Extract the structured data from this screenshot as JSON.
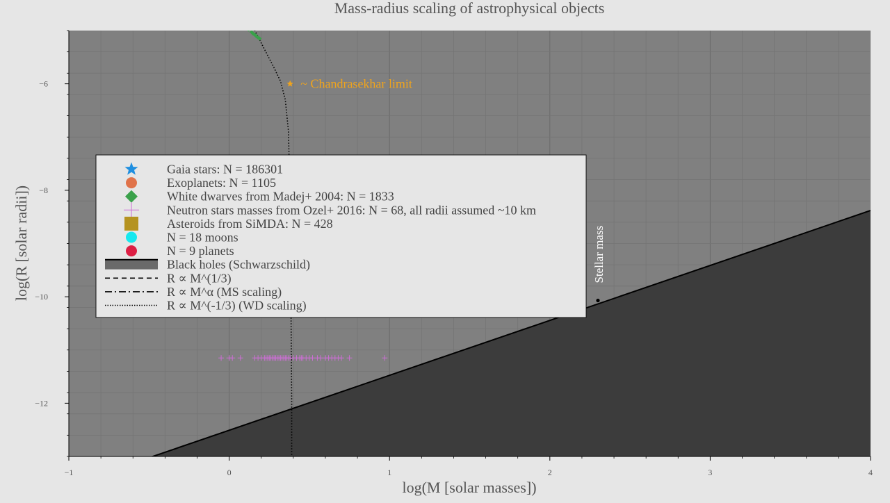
{
  "chart_data": {
    "type": "scatter",
    "title": "Mass-radius scaling of astrophysical objects",
    "xlabel": "log(M [solar masses])",
    "ylabel": "log(R [solar radii])",
    "xlim": [
      -1,
      4
    ],
    "ylim": [
      -13,
      -5
    ],
    "x_ticks": [
      {
        "value": -1,
        "label": "−1"
      },
      {
        "value": 0,
        "label": "0"
      },
      {
        "value": 1,
        "label": "1"
      },
      {
        "value": 2,
        "label": "2"
      },
      {
        "value": 3,
        "label": "3"
      },
      {
        "value": 4,
        "label": "4"
      }
    ],
    "y_ticks": [
      {
        "value": -6,
        "label": "−6"
      },
      {
        "value": -8,
        "label": "−8"
      },
      {
        "value": -10,
        "label": "−10"
      },
      {
        "value": -12,
        "label": "−12"
      }
    ],
    "grid": true,
    "legend_position": "upper-left",
    "legend": [
      {
        "label": "Gaia stars: N = 186301",
        "marker": "star",
        "color": "#1f8fe0"
      },
      {
        "label": "Exoplanets: N = 1105",
        "marker": "circle",
        "color": "#e0734a"
      },
      {
        "label": "White dwarves from Madej+ 2004: N = 1833",
        "marker": "diamond",
        "color": "#3aa14a"
      },
      {
        "label": "Neutron stars masses from Ozel+ 2016: N = 68, all radii assumed ~10 km",
        "marker": "plus",
        "color": "#cc6fd4"
      },
      {
        "label": "Asteroids from SiMDA: N = 428",
        "marker": "square",
        "color": "#b59320"
      },
      {
        "label": "N = 18 moons",
        "marker": "circle",
        "color": "#17e8ee"
      },
      {
        "label": "N = 9 planets",
        "marker": "circle",
        "color": "#dd1f44"
      },
      {
        "label": "Black holes (Schwarzschild)",
        "marker": "patch",
        "color": "#6a6a6a"
      },
      {
        "label": "R ∝ M^(1/3)",
        "marker": "dashed",
        "color": "#000000"
      },
      {
        "label": "R ∝ M^α (MS scaling)",
        "marker": "dashdot",
        "color": "#000000"
      },
      {
        "label": "R ∝ M^(-1/3) (WD scaling)",
        "marker": "dotted",
        "color": "#000000"
      }
    ],
    "series": [
      {
        "name": "Black holes (Schwarzschild)",
        "type": "line",
        "color": "#000000",
        "fill_below": "#3c3c3c",
        "x": [
          -1,
          4
        ],
        "y": [
          -13.54,
          -8.38
        ]
      },
      {
        "name": "R ∝ M^(-1/3) (WD scaling)",
        "type": "line",
        "style": "dotted",
        "color": "#000000",
        "x": [
          0.1,
          0.16,
          0.22,
          0.28,
          0.32,
          0.35,
          0.37,
          0.375,
          0.38,
          0.385,
          0.39,
          0.39
        ],
        "y": [
          -4.5,
          -5.0,
          -5.35,
          -5.7,
          -5.95,
          -6.3,
          -6.9,
          -7.6,
          -8.5,
          -10.0,
          -12.0,
          -13.0
        ]
      },
      {
        "name": "White dwarves from Madej+ 2004: N = 1833",
        "type": "scatter",
        "color": "#3aa14a",
        "x": [
          0.12,
          0.14,
          0.15,
          0.16,
          0.17,
          0.18,
          0.19
        ],
        "y": [
          -4.98,
          -5.03,
          -5.06,
          -5.08,
          -5.11,
          -5.13,
          -5.15
        ]
      },
      {
        "name": "Neutron stars masses from Ozel+ 2016: N = 68, all radii assumed ~10 km",
        "type": "scatter",
        "color": "#cc6fd4",
        "y_value": -11.15,
        "x": [
          -0.05,
          0.0,
          0.02,
          0.07,
          0.16,
          0.18,
          0.2,
          0.22,
          0.23,
          0.24,
          0.25,
          0.26,
          0.27,
          0.28,
          0.29,
          0.3,
          0.31,
          0.32,
          0.33,
          0.34,
          0.35,
          0.36,
          0.37,
          0.38,
          0.4,
          0.42,
          0.44,
          0.45,
          0.46,
          0.48,
          0.5,
          0.52,
          0.55,
          0.57,
          0.6,
          0.62,
          0.64,
          0.66,
          0.68,
          0.7,
          0.75,
          0.97
        ]
      }
    ],
    "annotations": [
      {
        "text": "~ Chandrasekhar limit",
        "x": 0.38,
        "y": -6.0,
        "color": "#f0a41c",
        "marker": "star"
      },
      {
        "text": "Stellar mass",
        "x": 2.3,
        "y": -10.07,
        "rotation": -90,
        "color": "#ffffff"
      }
    ]
  }
}
